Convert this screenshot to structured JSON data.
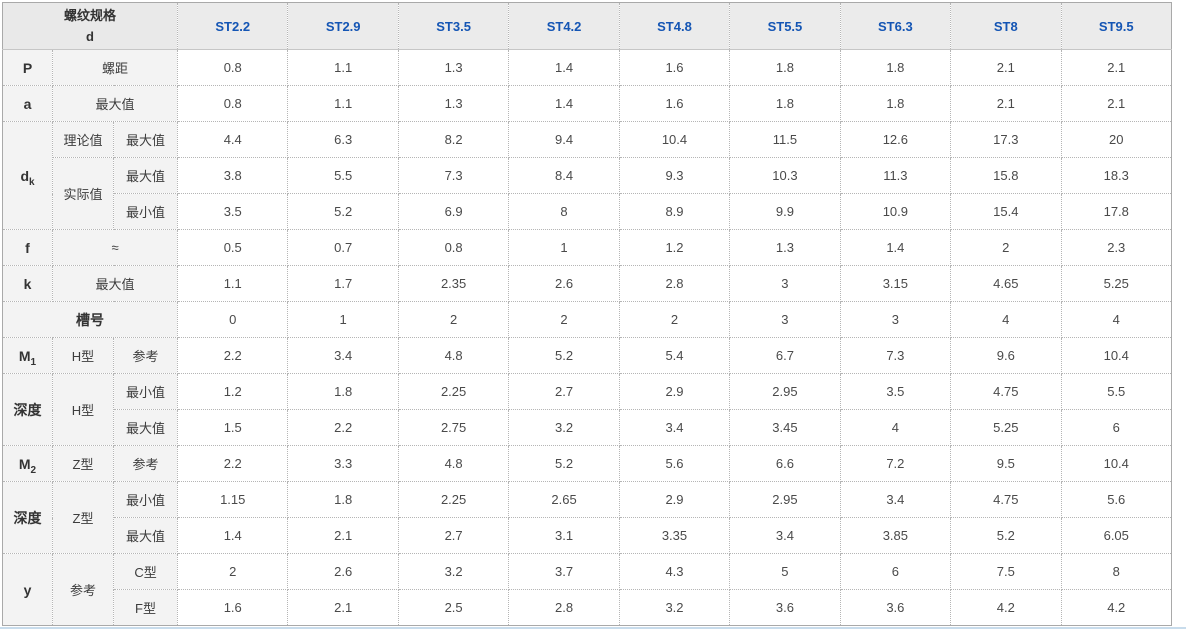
{
  "colors": {
    "header_text_blue": "#1455b4",
    "header_bg": "#ebebeb",
    "label_bg": "#f3f3f3",
    "border": "#b5b5b5",
    "bottom_rule": "#c8dcec"
  },
  "table": {
    "corner": {
      "line1": "螺纹规格",
      "line2": "d"
    },
    "columns": [
      "ST2.2",
      "ST2.9",
      "ST3.5",
      "ST4.2",
      "ST4.8",
      "ST5.5",
      "ST6.3",
      "ST8",
      "ST9.5"
    ],
    "rows": [
      {
        "labels": [
          {
            "t": "P",
            "b": 1
          },
          {
            "t": "螺距",
            "cs": 2
          }
        ],
        "values": [
          "0.8",
          "1.1",
          "1.3",
          "1.4",
          "1.6",
          "1.8",
          "1.8",
          "2.1",
          "2.1"
        ]
      },
      {
        "labels": [
          {
            "t": "a",
            "b": 1
          },
          {
            "t": "最大值",
            "cs": 2
          }
        ],
        "values": [
          "0.8",
          "1.1",
          "1.3",
          "1.4",
          "1.6",
          "1.8",
          "1.8",
          "2.1",
          "2.1"
        ]
      },
      {
        "labels": [
          {
            "t": "d",
            "sub": "k",
            "b": 1,
            "rs": 3
          },
          {
            "t": "理论值"
          },
          {
            "t": "最大值"
          }
        ],
        "values": [
          "4.4",
          "6.3",
          "8.2",
          "9.4",
          "10.4",
          "11.5",
          "12.6",
          "17.3",
          "20"
        ]
      },
      {
        "labels": [
          {
            "t": "实际值",
            "rs": 2
          },
          {
            "t": "最大值"
          }
        ],
        "values": [
          "3.8",
          "5.5",
          "7.3",
          "8.4",
          "9.3",
          "10.3",
          "11.3",
          "15.8",
          "18.3"
        ]
      },
      {
        "labels": [
          {
            "t": "最小值"
          }
        ],
        "values": [
          "3.5",
          "5.2",
          "6.9",
          "8",
          "8.9",
          "9.9",
          "10.9",
          "15.4",
          "17.8"
        ]
      },
      {
        "labels": [
          {
            "t": "f",
            "b": 1
          },
          {
            "t": "≈",
            "cs": 2
          }
        ],
        "values": [
          "0.5",
          "0.7",
          "0.8",
          "1",
          "1.2",
          "1.3",
          "1.4",
          "2",
          "2.3"
        ]
      },
      {
        "labels": [
          {
            "t": "k",
            "b": 1
          },
          {
            "t": "最大值",
            "cs": 2
          }
        ],
        "values": [
          "1.1",
          "1.7",
          "2.35",
          "2.6",
          "2.8",
          "3",
          "3.15",
          "4.65",
          "5.25"
        ]
      },
      {
        "labels": [
          {
            "t": "槽号",
            "b": 1,
            "cs": 3
          }
        ],
        "values": [
          "0",
          "1",
          "2",
          "2",
          "2",
          "3",
          "3",
          "4",
          "4"
        ]
      },
      {
        "labels": [
          {
            "t": "M",
            "sub": "1",
            "b": 1
          },
          {
            "t": "H型"
          },
          {
            "t": "参考"
          }
        ],
        "values": [
          "2.2",
          "3.4",
          "4.8",
          "5.2",
          "5.4",
          "6.7",
          "7.3",
          "9.6",
          "10.4"
        ]
      },
      {
        "labels": [
          {
            "t": "深度",
            "b": 1,
            "rs": 2
          },
          {
            "t": "H型",
            "rs": 2
          },
          {
            "t": "最小值"
          }
        ],
        "values": [
          "1.2",
          "1.8",
          "2.25",
          "2.7",
          "2.9",
          "2.95",
          "3.5",
          "4.75",
          "5.5"
        ]
      },
      {
        "labels": [
          {
            "t": "最大值"
          }
        ],
        "values": [
          "1.5",
          "2.2",
          "2.75",
          "3.2",
          "3.4",
          "3.45",
          "4",
          "5.25",
          "6"
        ]
      },
      {
        "labels": [
          {
            "t": "M",
            "sub": "2",
            "b": 1
          },
          {
            "t": "Z型"
          },
          {
            "t": "参考"
          }
        ],
        "values": [
          "2.2",
          "3.3",
          "4.8",
          "5.2",
          "5.6",
          "6.6",
          "7.2",
          "9.5",
          "10.4"
        ]
      },
      {
        "labels": [
          {
            "t": "深度",
            "b": 1,
            "rs": 2
          },
          {
            "t": "Z型",
            "rs": 2
          },
          {
            "t": "最小值"
          }
        ],
        "values": [
          "1.15",
          "1.8",
          "2.25",
          "2.65",
          "2.9",
          "2.95",
          "3.4",
          "4.75",
          "5.6"
        ]
      },
      {
        "labels": [
          {
            "t": "最大值"
          }
        ],
        "values": [
          "1.4",
          "2.1",
          "2.7",
          "3.1",
          "3.35",
          "3.4",
          "3.85",
          "5.2",
          "6.05"
        ]
      },
      {
        "labels": [
          {
            "t": "y",
            "b": 1,
            "rs": 2
          },
          {
            "t": "参考",
            "rs": 2
          },
          {
            "t": "C型"
          }
        ],
        "values": [
          "2",
          "2.6",
          "3.2",
          "3.7",
          "4.3",
          "5",
          "6",
          "7.5",
          "8"
        ]
      },
      {
        "labels": [
          {
            "t": "F型"
          }
        ],
        "values": [
          "1.6",
          "2.1",
          "2.5",
          "2.8",
          "3.2",
          "3.6",
          "3.6",
          "4.2",
          "4.2"
        ]
      }
    ]
  }
}
